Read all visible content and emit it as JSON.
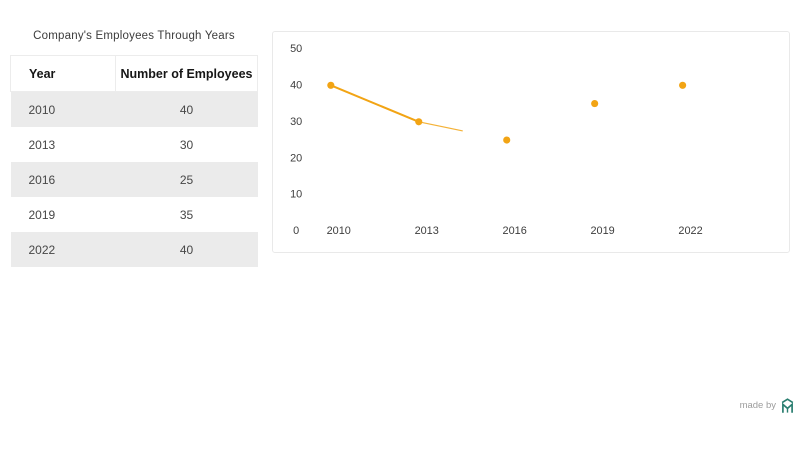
{
  "table_section": {
    "title": "Company's Employees Through Years",
    "columns": {
      "year": "Year",
      "employees": "Number of Employees"
    },
    "rows": [
      {
        "year": "2010",
        "employees": "40"
      },
      {
        "year": "2013",
        "employees": "30"
      },
      {
        "year": "2016",
        "employees": "25"
      },
      {
        "year": "2019",
        "employees": "35"
      },
      {
        "year": "2022",
        "employees": "40"
      }
    ],
    "zebra_color": "#ebebeb"
  },
  "chart_data": {
    "type": "line",
    "title": "",
    "xlabel": "",
    "ylabel": "",
    "categories": [
      "2010",
      "2013",
      "2016",
      "2019",
      "2022"
    ],
    "series": [
      {
        "name": "Number of Employees",
        "values": [
          40,
          30,
          25,
          35,
          40
        ]
      }
    ],
    "ylim": [
      0,
      50
    ],
    "yticks": [
      0,
      10,
      20,
      30,
      40,
      50
    ],
    "grid": false,
    "legend_position": "none",
    "point_color": "#f2a414",
    "line_color": "#f2a414",
    "partial_line": {
      "from_index": 1,
      "to_index": 2,
      "fraction": 0.5
    }
  },
  "footer": {
    "made_by_label": "made by",
    "logo_name": "m-shield-logo",
    "logo_color": "#2a7e70"
  }
}
